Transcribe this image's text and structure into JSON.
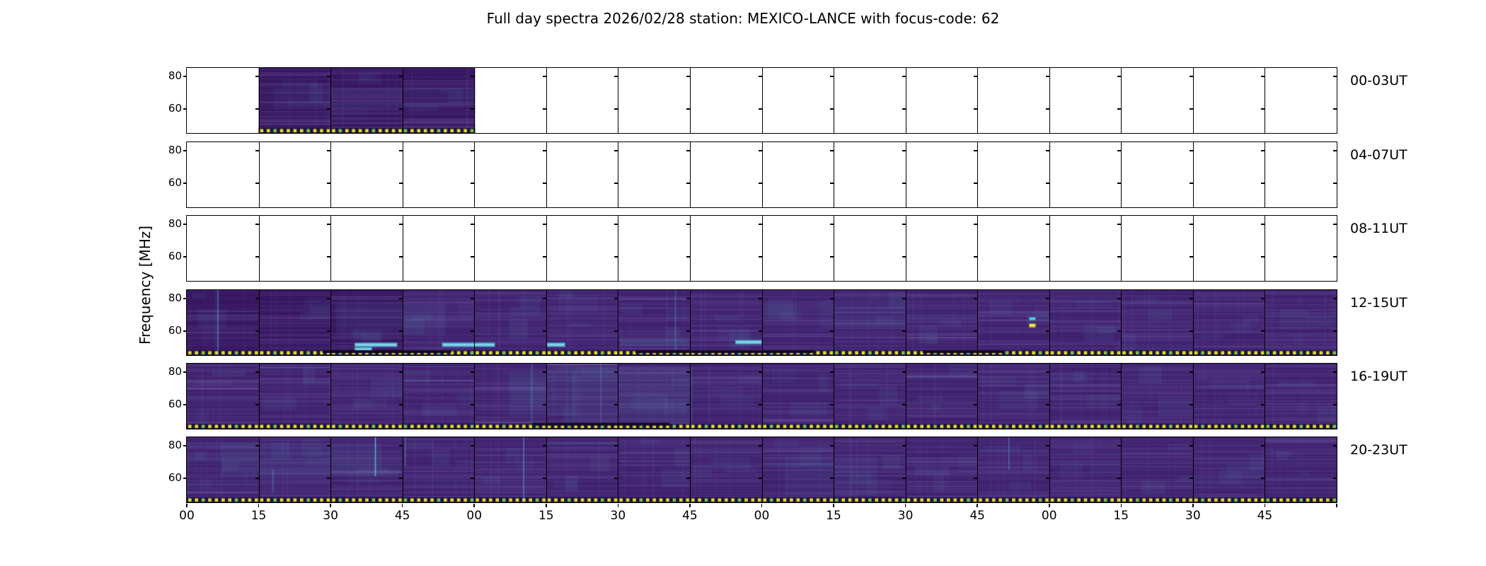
{
  "figure": {
    "title": "Full day spectra 2026/02/28 station: MEXICO-LANCE with focus-code: 62"
  },
  "axes": {
    "ylabel": "Frequency [MHz]",
    "y_tick_labels": [
      "80",
      "60"
    ],
    "x_tick_labels": [
      "00",
      "15",
      "30",
      "45",
      "00",
      "15",
      "30",
      "45",
      "00",
      "15",
      "30",
      "45",
      "00",
      "15",
      "30",
      "45"
    ],
    "row_labels": [
      "00-03UT",
      "04-07UT",
      "08-11UT",
      "12-15UT",
      "16-19UT",
      "20-23UT"
    ]
  },
  "rows": [
    {
      "label": "00-03UT",
      "covered_panels": [
        1,
        2,
        3
      ],
      "features": [
        {
          "type": "glow",
          "x0": 0.075,
          "x1": 0.24,
          "y0": 0.3,
          "y1": 0.62,
          "a": 0.07
        }
      ]
    },
    {
      "label": "04-07UT",
      "covered_panels": [],
      "features": []
    },
    {
      "label": "08-11UT",
      "covered_panels": [],
      "features": []
    },
    {
      "label": "12-15UT",
      "covered_panels": [
        0,
        1,
        2,
        3,
        4,
        5,
        6,
        7,
        8,
        9,
        10,
        11,
        12,
        13,
        14,
        15
      ],
      "features": [
        {
          "type": "vstreak",
          "fx": 0.027,
          "y0": 0.0,
          "y1": 1.0,
          "a": 0.45
        },
        {
          "type": "vstreak",
          "fx": 0.425,
          "y0": 0.0,
          "y1": 1.0,
          "a": 0.3
        },
        {
          "type": "glow",
          "x0": 0.13,
          "x1": 0.225,
          "y0": 0.2,
          "y1": 0.7,
          "a": 0.09
        },
        {
          "type": "glow",
          "x0": 0.55,
          "x1": 0.625,
          "y0": 0.15,
          "y1": 0.6,
          "a": 0.08
        },
        {
          "type": "glow",
          "x0": 0.377,
          "x1": 0.437,
          "y0": 0.76,
          "y1": 0.86,
          "a": 0.22
        },
        {
          "type": "teal-bar",
          "x0": 0.146,
          "x1": 0.183,
          "fy": 0.84
        },
        {
          "type": "teal-bar",
          "x0": 0.222,
          "x1": 0.268,
          "fy": 0.84
        },
        {
          "type": "teal-bar",
          "x0": 0.313,
          "x1": 0.329,
          "fy": 0.84
        },
        {
          "type": "teal-bar",
          "x0": 0.477,
          "x1": 0.5,
          "fy": 0.8
        },
        {
          "type": "teal-bar",
          "x0": 0.146,
          "x1": 0.161,
          "fy": 0.91
        },
        {
          "type": "dark-bar",
          "x0": 0.118,
          "x1": 0.23,
          "fy": 0.945
        },
        {
          "type": "dark-bar",
          "x0": 0.39,
          "x1": 0.545,
          "fy": 0.945
        },
        {
          "type": "dark-bar",
          "x0": 0.64,
          "x1": 0.71,
          "fy": 0.945
        },
        {
          "type": "burst",
          "fx": 0.735,
          "fy": 0.44
        }
      ]
    },
    {
      "label": "16-19UT",
      "covered_panels": [
        0,
        1,
        2,
        3,
        4,
        5,
        6,
        7,
        8,
        9,
        10,
        11,
        12,
        13,
        14,
        15
      ],
      "features": [
        {
          "type": "glow",
          "x0": 0.28,
          "x1": 0.34,
          "y0": 0.1,
          "y1": 0.8,
          "a": 0.1
        },
        {
          "type": "glow",
          "x0": 0.335,
          "x1": 0.44,
          "y0": 0.05,
          "y1": 0.9,
          "a": 0.12
        },
        {
          "type": "vstreak",
          "fx": 0.3,
          "y0": 0.0,
          "y1": 1.0,
          "a": 0.28
        },
        {
          "type": "vstreak",
          "fx": 0.36,
          "y0": 0.0,
          "y1": 1.0,
          "a": 0.22
        },
        {
          "type": "dark-bar",
          "x0": 0.3,
          "x1": 0.42,
          "fy": 0.93
        }
      ]
    },
    {
      "label": "20-23UT",
      "covered_panels": [
        0,
        1,
        2,
        3,
        4,
        5,
        6,
        7,
        8,
        9,
        10,
        11,
        12,
        13,
        14,
        15
      ],
      "features": [
        {
          "type": "glow",
          "x0": 0.03,
          "x1": 0.17,
          "y0": 0.1,
          "y1": 0.6,
          "a": 0.1
        },
        {
          "type": "glow",
          "x0": 0.52,
          "x1": 0.6,
          "y0": 0.3,
          "y1": 0.9,
          "a": 0.08
        },
        {
          "type": "vstreak",
          "fx": 0.164,
          "y0": 0.0,
          "y1": 0.6,
          "a": 0.75
        },
        {
          "type": "vstreak",
          "fx": 0.19,
          "y0": 0.0,
          "y1": 0.45,
          "a": 0.35
        },
        {
          "type": "vstreak",
          "fx": 0.075,
          "y0": 0.5,
          "y1": 0.85,
          "a": 0.3
        },
        {
          "type": "vstreak",
          "fx": 0.293,
          "y0": 0.0,
          "y1": 1.0,
          "a": 0.45
        },
        {
          "type": "vstreak",
          "fx": 0.715,
          "y0": 0.0,
          "y1": 0.5,
          "a": 0.35
        }
      ]
    }
  ],
  "colors": {
    "figure_bg": "#ffffff",
    "axis": "#000000",
    "text": "#000000",
    "spec_base": [
      "#3b1a66",
      "#3e1d6c",
      "#381561",
      "#40216f"
    ],
    "striation": "160,150,210",
    "striation_teal": "90,160,190",
    "glow": "90,150,185",
    "vstreak": "100,210,230",
    "teal_bar": "#4fa8c8",
    "teal_core": "#7fd4ea",
    "dark_bar": "#140826",
    "dot_strip": "#221041",
    "dot_yellow": "#d9e22b",
    "dot_green": "#7ac34e",
    "burst_cyan": "#45d4e8",
    "burst_yellow": "#e9e63b"
  },
  "chart_data": {
    "type": "heatmap",
    "title": "Full day spectra 2026/02/28 station: MEXICO-LANCE with focus-code: 62",
    "ylabel": "Frequency [MHz]",
    "y_ticks": [
      80,
      60
    ],
    "ylim": [
      45,
      85
    ],
    "x_tick_labels": [
      "00",
      "15",
      "30",
      "45",
      "00",
      "15",
      "30",
      "45",
      "00",
      "15",
      "30",
      "45",
      "00",
      "15",
      "30",
      "45"
    ],
    "x_unit": "minutes past hour; each row spans 4 hours split into 16 fifteen-minute sub-panels",
    "rows": [
      {
        "label": "00-03UT",
        "data_present": "00:15-01:00 only (3 sub-panels), rest empty"
      },
      {
        "label": "04-07UT",
        "data_present": "none (all sub-panels empty)"
      },
      {
        "label": "08-11UT",
        "data_present": "none (all sub-panels empty)"
      },
      {
        "label": "12-15UT",
        "data_present": "all 16 sub-panels; teal transient bars near low frequencies and one cyan/yellow point burst near 14:45 at ~60 MHz"
      },
      {
        "label": "16-19UT",
        "data_present": "all 16 sub-panels; lighter blue texture around 17:15-17:45"
      },
      {
        "label": "20-23UT",
        "data_present": "all 16 sub-panels; bright vertical streaks near 20:40 and 21:10"
      }
    ],
    "colormap": "viridis-style: dark purple background, teal/cyan enhancements, yellow-green dotted calibration line along bottom of each data panel",
    "legend": "none",
    "grid": "black sub-panel borders every 15 minutes; y tick marks at 80 and 60 MHz on every sub-panel edge"
  }
}
